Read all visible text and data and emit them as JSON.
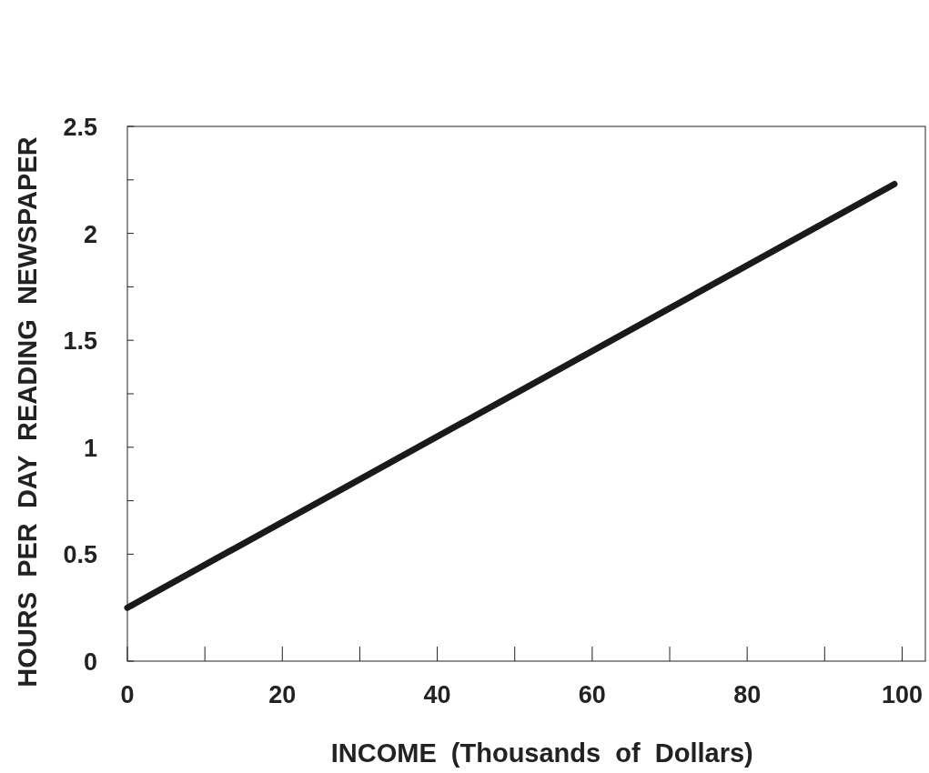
{
  "chart_data": {
    "type": "line",
    "xlabel": "INCOME  (Thousands  of  Dollars)",
    "ylabel": "HOURS  PER  DAY  READING  NEWSPAPER",
    "x": [
      0,
      99
    ],
    "series": [
      {
        "color": "#1a1a1a",
        "values": [
          0.25,
          2.23
        ]
      }
    ],
    "xlim": [
      0,
      103
    ],
    "xticks": [
      0,
      {
        "value": 10,
        "label": null
      },
      20,
      {
        "value": 30,
        "label": null
      },
      40,
      {
        "value": 50,
        "label": null
      },
      60,
      {
        "value": 70,
        "label": null
      },
      80,
      {
        "value": 90,
        "label": null
      },
      100
    ],
    "ylim": [
      0,
      2.5
    ],
    "yticks": [
      0,
      {
        "value": 0.25,
        "label": null
      },
      0.5,
      {
        "value": 0.75,
        "label": null
      },
      1,
      {
        "value": 1.25,
        "label": null
      },
      1.5,
      {
        "value": 1.75,
        "label": null
      },
      2,
      {
        "value": 2.25,
        "label": null
      },
      2.5
    ],
    "line_style": "solid"
  }
}
